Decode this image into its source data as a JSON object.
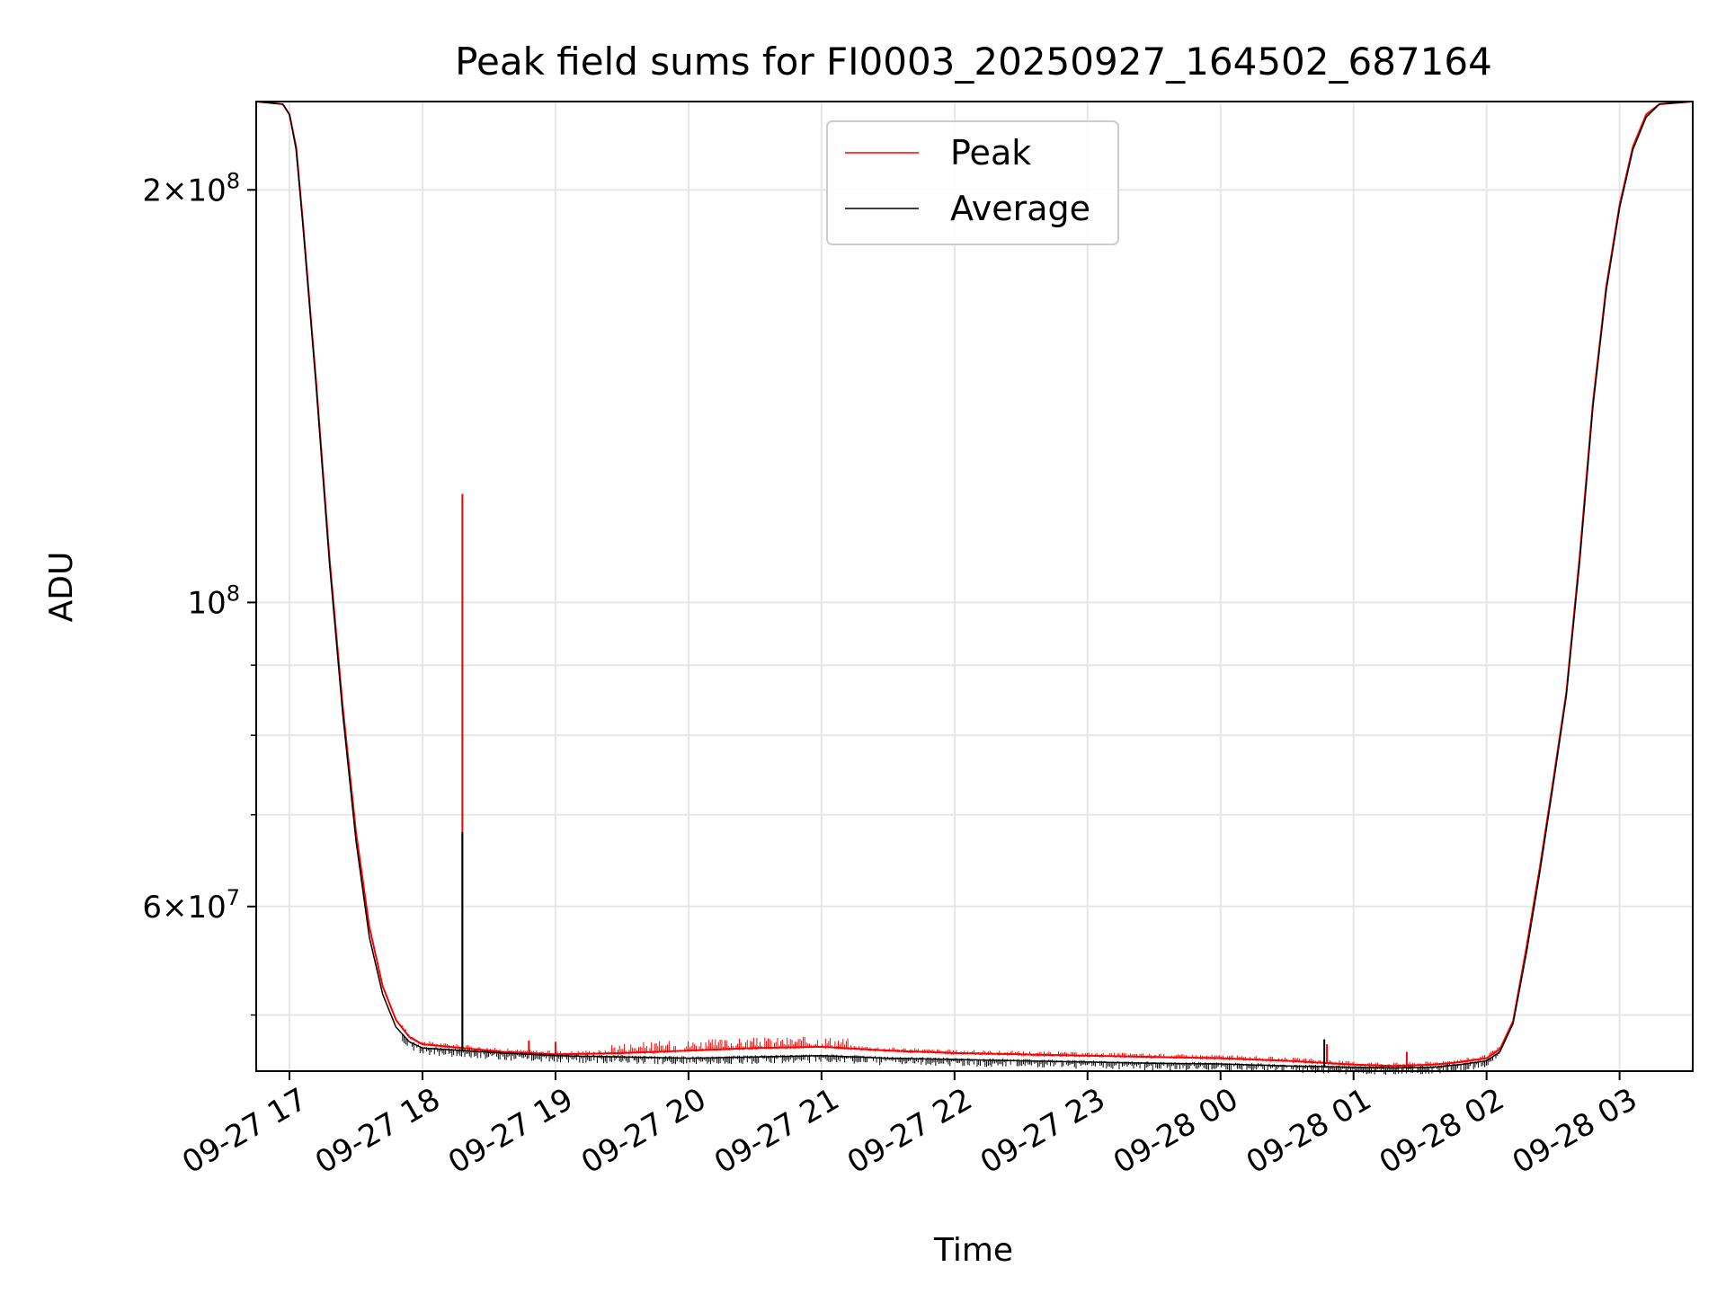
{
  "chart_data": {
    "type": "line",
    "title": "Peak field sums for FI0003_20250927_164502_687164",
    "xlabel": "Time",
    "ylabel": "ADU",
    "yscale": "log",
    "grid": true,
    "legend_position": "upper-center",
    "xlim_hours": [
      16.75,
      27.55
    ],
    "ylim": [
      45500000,
      232000000
    ],
    "x_ticks": [
      {
        "hour": 17,
        "label": "09-27 17"
      },
      {
        "hour": 18,
        "label": "09-27 18"
      },
      {
        "hour": 19,
        "label": "09-27 19"
      },
      {
        "hour": 20,
        "label": "09-27 20"
      },
      {
        "hour": 21,
        "label": "09-27 21"
      },
      {
        "hour": 22,
        "label": "09-27 22"
      },
      {
        "hour": 23,
        "label": "09-27 23"
      },
      {
        "hour": 24,
        "label": "09-28 00"
      },
      {
        "hour": 25,
        "label": "09-28 01"
      },
      {
        "hour": 26,
        "label": "09-28 02"
      },
      {
        "hour": 27,
        "label": "09-28 03"
      }
    ],
    "y_major_ticks": [
      {
        "value": 100000000,
        "base": "10",
        "exp": "8"
      },
      {
        "value": 200000000,
        "mant": "2",
        "base": "10",
        "exp": "8"
      },
      {
        "value": 60000000,
        "mant": "6",
        "base": "10",
        "exp": "7"
      }
    ],
    "y_minor_ticks": [
      50000000,
      70000000,
      80000000,
      90000000
    ],
    "series": [
      {
        "name": "Peak",
        "color": "#ff0000",
        "x": [
          16.75,
          16.95,
          17.0,
          17.05,
          17.1,
          17.2,
          17.3,
          17.4,
          17.5,
          17.6,
          17.7,
          17.8,
          17.9,
          18.0,
          18.3,
          18.6,
          19.0,
          19.5,
          20.0,
          20.5,
          21.0,
          21.5,
          22.0,
          22.5,
          23.0,
          23.5,
          24.0,
          24.5,
          25.0,
          25.3,
          25.6,
          25.8,
          26.0,
          26.1,
          26.2,
          26.3,
          26.4,
          26.5,
          26.6,
          26.7,
          26.8,
          26.9,
          27.0,
          27.1,
          27.2,
          27.3,
          27.55
        ],
        "y": [
          232000000,
          231000000,
          227000000,
          215000000,
          190000000,
          145000000,
          108000000,
          84000000,
          68000000,
          58000000,
          52500000,
          49600000,
          48200000,
          47600000,
          47300000,
          47000000,
          46800000,
          46900000,
          47100000,
          47300000,
          47400000,
          47100000,
          46900000,
          46800000,
          46700000,
          46600000,
          46500000,
          46300000,
          46000000,
          45900000,
          46000000,
          46200000,
          46500000,
          47200000,
          49500000,
          56000000,
          64000000,
          74000000,
          86000000,
          108000000,
          140000000,
          170000000,
          195000000,
          215000000,
          227000000,
          231000000,
          232000000
        ],
        "spikes": [
          [
            18.3,
            120000000
          ],
          [
            18.8,
            47900000
          ],
          [
            19.0,
            47800000
          ],
          [
            25.4,
            47000000
          ],
          [
            24.8,
            47600000
          ]
        ]
      },
      {
        "name": "Average",
        "color": "#000000",
        "x": [
          16.75,
          16.95,
          17.0,
          17.05,
          17.1,
          17.2,
          17.3,
          17.4,
          17.5,
          17.6,
          17.7,
          17.8,
          17.9,
          18.0,
          18.3,
          18.6,
          19.0,
          19.5,
          20.0,
          20.5,
          21.0,
          21.5,
          22.0,
          22.5,
          23.0,
          23.5,
          24.0,
          24.5,
          25.0,
          25.3,
          25.6,
          25.8,
          26.0,
          26.1,
          26.2,
          26.3,
          26.4,
          26.5,
          26.6,
          26.7,
          26.8,
          26.9,
          27.0,
          27.1,
          27.2,
          27.3,
          27.55
        ],
        "y": [
          232000000,
          231000000,
          227000000,
          214000000,
          189000000,
          144000000,
          107000000,
          83000000,
          67000000,
          57000000,
          51800000,
          49000000,
          47800000,
          47300000,
          47100000,
          46900000,
          46700000,
          46600000,
          46500000,
          46600000,
          46700000,
          46500000,
          46400000,
          46300000,
          46200000,
          46100000,
          46050000,
          45900000,
          45800000,
          45750000,
          45800000,
          46000000,
          46300000,
          47000000,
          49300000,
          55500000,
          63500000,
          73500000,
          85500000,
          107000000,
          139000000,
          169000000,
          194000000,
          214000000,
          226000000,
          231000000,
          232000000
        ],
        "spikes": [
          [
            18.3,
            68000000
          ],
          [
            24.78,
            48000000
          ]
        ]
      }
    ]
  }
}
